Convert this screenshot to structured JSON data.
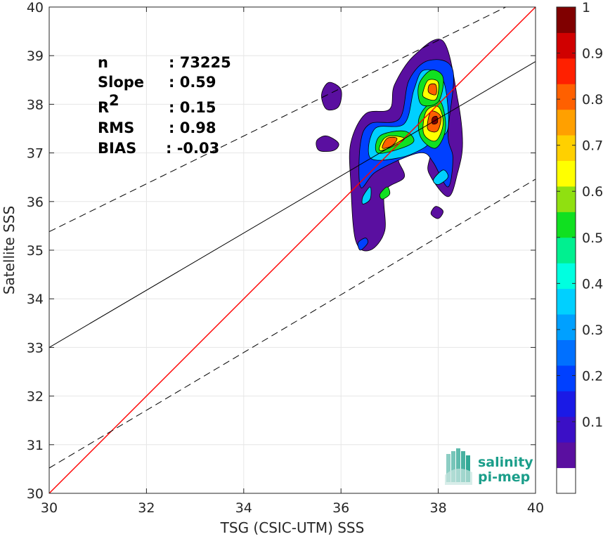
{
  "chart_data": {
    "type": "scatter",
    "subtype": "density-contour",
    "xlabel": "TSG (CSIC-UTM) SSS",
    "ylabel": "Satellite SSS",
    "xlim": [
      30,
      40
    ],
    "ylim": [
      30,
      40
    ],
    "xticks": [
      "30",
      "32",
      "34",
      "36",
      "38",
      "40"
    ],
    "yticks": [
      "30",
      "31",
      "32",
      "33",
      "34",
      "35",
      "36",
      "37",
      "38",
      "39",
      "40"
    ],
    "grid": true,
    "stats": [
      {
        "name": "n",
        "value": ": 73225"
      },
      {
        "name": "Slope",
        "value": ": 0.59"
      },
      {
        "name": "R",
        "sup": "2",
        "value": ": 0.15"
      },
      {
        "name": "RMS",
        "value": ": 0.98"
      },
      {
        "name": "BIAS",
        "value": ": -0.03"
      }
    ],
    "lines": {
      "identity": {
        "color": "#ff0000",
        "y_at_30": 30,
        "y_at_40": 40
      },
      "regression": {
        "color": "#000000",
        "y_at_30": 33.0,
        "y_at_40": 38.88
      },
      "upper_bound": {
        "color": "#000000",
        "dash": true,
        "y_at_30": 35.38,
        "y_at_40": 40.3
      },
      "lower_bound": {
        "color": "#000000",
        "dash": true,
        "y_at_30": 30.52,
        "y_at_40": 36.46
      }
    },
    "density_blobs": [
      {
        "level": 0.05,
        "points": [
          [
            36.3,
            35.2
          ],
          [
            36.6,
            35.0
          ],
          [
            36.9,
            35.4
          ],
          [
            36.9,
            36.2
          ],
          [
            37.3,
            36.5
          ],
          [
            37.2,
            36.9
          ],
          [
            37.8,
            37.0
          ],
          [
            37.8,
            36.6
          ],
          [
            38.2,
            36.1
          ],
          [
            38.4,
            36.6
          ],
          [
            38.5,
            37.2
          ],
          [
            38.4,
            38.1
          ],
          [
            38.1,
            39.3
          ],
          [
            37.5,
            39.0
          ],
          [
            37.1,
            38.4
          ],
          [
            37.0,
            37.9
          ],
          [
            36.5,
            37.8
          ],
          [
            36.2,
            37.2
          ],
          [
            36.2,
            36.4
          ]
        ]
      },
      {
        "level": 0.05,
        "points": [
          [
            35.6,
            38.2
          ],
          [
            35.75,
            38.45
          ],
          [
            36.0,
            38.3
          ],
          [
            35.95,
            37.95
          ],
          [
            35.7,
            37.9
          ]
        ]
      },
      {
        "level": 0.05,
        "points": [
          [
            35.5,
            37.25
          ],
          [
            35.7,
            37.35
          ],
          [
            35.95,
            37.2
          ],
          [
            35.85,
            37.05
          ],
          [
            35.55,
            37.05
          ]
        ]
      },
      {
        "level": 0.05,
        "points": [
          [
            37.85,
            35.75
          ],
          [
            37.95,
            35.9
          ],
          [
            38.1,
            35.8
          ],
          [
            38.0,
            35.65
          ]
        ]
      },
      {
        "level": 0.2,
        "points": [
          [
            36.4,
            35.0
          ],
          [
            36.55,
            35.15
          ],
          [
            36.5,
            35.25
          ],
          [
            36.35,
            35.15
          ]
        ]
      },
      {
        "level": 0.2,
        "points": [
          [
            36.4,
            36.3
          ],
          [
            36.7,
            36.6
          ],
          [
            37.3,
            36.9
          ],
          [
            37.7,
            37.0
          ],
          [
            37.9,
            36.8
          ],
          [
            38.2,
            36.3
          ],
          [
            38.3,
            36.9
          ],
          [
            38.2,
            37.4
          ],
          [
            38.3,
            38.7
          ],
          [
            37.8,
            38.9
          ],
          [
            37.4,
            38.5
          ],
          [
            37.2,
            37.7
          ],
          [
            36.6,
            37.6
          ],
          [
            36.4,
            37.2
          ]
        ]
      },
      {
        "level": 0.35,
        "points": [
          [
            36.6,
            36.9
          ],
          [
            37.2,
            36.9
          ],
          [
            37.7,
            37.1
          ],
          [
            37.9,
            37.3
          ],
          [
            38.2,
            37.5
          ],
          [
            38.1,
            38.5
          ],
          [
            37.7,
            38.7
          ],
          [
            37.5,
            38.3
          ],
          [
            37.3,
            37.6
          ],
          [
            36.7,
            37.5
          ]
        ]
      },
      {
        "level": 0.35,
        "points": [
          [
            36.45,
            36.1
          ],
          [
            36.6,
            36.3
          ],
          [
            36.6,
            36.05
          ],
          [
            36.45,
            35.95
          ]
        ]
      },
      {
        "level": 0.35,
        "points": [
          [
            37.9,
            36.45
          ],
          [
            38.1,
            36.65
          ],
          [
            38.2,
            36.5
          ],
          [
            38.0,
            36.35
          ]
        ]
      },
      {
        "level": 0.5,
        "points": [
          [
            36.75,
            37.0
          ],
          [
            37.25,
            37.1
          ],
          [
            37.5,
            37.25
          ],
          [
            37.3,
            37.45
          ],
          [
            36.8,
            37.35
          ]
        ]
      },
      {
        "level": 0.5,
        "points": [
          [
            37.65,
            37.3
          ],
          [
            37.95,
            37.1
          ],
          [
            38.15,
            37.5
          ],
          [
            38.05,
            38.05
          ],
          [
            37.8,
            38.0
          ],
          [
            37.6,
            37.7
          ]
        ]
      },
      {
        "level": 0.5,
        "points": [
          [
            37.65,
            38.0
          ],
          [
            38.0,
            38.05
          ],
          [
            38.1,
            38.55
          ],
          [
            37.85,
            38.7
          ],
          [
            37.6,
            38.4
          ]
        ]
      },
      {
        "level": 0.5,
        "points": [
          [
            36.8,
            36.15
          ],
          [
            36.95,
            36.3
          ],
          [
            37.0,
            36.15
          ],
          [
            36.85,
            36.05
          ]
        ]
      },
      {
        "level": 0.65,
        "points": [
          [
            36.8,
            37.05
          ],
          [
            37.1,
            37.15
          ],
          [
            37.3,
            37.3
          ],
          [
            37.0,
            37.35
          ],
          [
            36.85,
            37.25
          ]
        ]
      },
      {
        "level": 0.65,
        "points": [
          [
            37.7,
            37.4
          ],
          [
            37.95,
            37.25
          ],
          [
            38.1,
            37.6
          ],
          [
            38.0,
            37.95
          ],
          [
            37.75,
            37.85
          ]
        ]
      },
      {
        "level": 0.65,
        "points": [
          [
            37.7,
            38.15
          ],
          [
            37.95,
            38.1
          ],
          [
            38.0,
            38.45
          ],
          [
            37.8,
            38.5
          ],
          [
            37.7,
            38.3
          ]
        ]
      },
      {
        "level": 0.8,
        "points": [
          [
            36.85,
            37.1
          ],
          [
            37.05,
            37.15
          ],
          [
            37.15,
            37.3
          ],
          [
            36.95,
            37.3
          ]
        ]
      },
      {
        "level": 0.8,
        "points": [
          [
            37.78,
            37.5
          ],
          [
            37.98,
            37.45
          ],
          [
            38.05,
            37.75
          ],
          [
            37.85,
            37.85
          ]
        ]
      },
      {
        "level": 0.8,
        "points": [
          [
            37.8,
            38.25
          ],
          [
            37.95,
            38.2
          ],
          [
            37.95,
            38.4
          ],
          [
            37.82,
            38.4
          ]
        ]
      },
      {
        "level": 0.95,
        "points": [
          [
            37.88,
            37.6
          ],
          [
            37.98,
            37.62
          ],
          [
            37.97,
            37.75
          ],
          [
            37.88,
            37.72
          ]
        ]
      }
    ],
    "colorbar": {
      "ticks": [
        "0.1",
        "0.2",
        "0.3",
        "0.4",
        "0.5",
        "0.6",
        "0.7",
        "0.8",
        "0.9",
        "1"
      ],
      "colors": [
        "#ffffff",
        "#5a0fa0",
        "#3b0fc6",
        "#1a1ae6",
        "#0040ff",
        "#0070ff",
        "#00a0ff",
        "#00d0ff",
        "#00ffe0",
        "#00f090",
        "#10e020",
        "#90e010",
        "#ffff00",
        "#ffd000",
        "#ffa000",
        "#ff6000",
        "#ff2000",
        "#d00000",
        "#800000"
      ]
    }
  },
  "logo": {
    "line1": "salinity",
    "line2": "pi-mep",
    "color": "#1b9e8a"
  }
}
